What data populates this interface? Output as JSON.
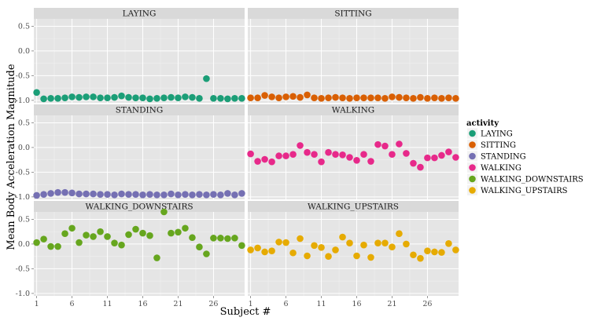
{
  "chart_data": {
    "type": "scatter",
    "xlabel": "Subject #",
    "ylabel": "Mean Body Acceleration Magnitude",
    "xlim": [
      0.6,
      30.4
    ],
    "ylim": [
      -1.05,
      0.65
    ],
    "x_ticks": [
      1,
      6,
      11,
      16,
      21,
      26
    ],
    "y_ticks": [
      -1.0,
      -0.5,
      0.0,
      0.5
    ],
    "y_tick_labels": [
      "-1.0",
      "-0.5",
      "0.0",
      "0.5"
    ],
    "grid": true,
    "legend_title": "activity",
    "legend_position": "right",
    "x": [
      1,
      2,
      3,
      4,
      5,
      6,
      7,
      8,
      9,
      10,
      11,
      12,
      13,
      14,
      15,
      16,
      17,
      18,
      19,
      20,
      21,
      22,
      23,
      24,
      25,
      26,
      27,
      28,
      29,
      30
    ],
    "facets": [
      {
        "name": "LAYING",
        "color": "#1b9e77",
        "values": [
          -0.84,
          -0.97,
          -0.96,
          -0.96,
          -0.95,
          -0.93,
          -0.94,
          -0.93,
          -0.93,
          -0.95,
          -0.95,
          -0.94,
          -0.91,
          -0.94,
          -0.95,
          -0.95,
          -0.97,
          -0.96,
          -0.95,
          -0.94,
          -0.95,
          -0.93,
          -0.94,
          -0.96,
          -0.56,
          -0.96,
          -0.96,
          -0.97,
          -0.96,
          -0.96
        ]
      },
      {
        "name": "SITTING",
        "color": "#d95f02",
        "values": [
          -0.95,
          -0.95,
          -0.9,
          -0.93,
          -0.95,
          -0.93,
          -0.92,
          -0.94,
          -0.89,
          -0.95,
          -0.96,
          -0.95,
          -0.94,
          -0.95,
          -0.96,
          -0.95,
          -0.95,
          -0.95,
          -0.95,
          -0.96,
          -0.93,
          -0.94,
          -0.95,
          -0.96,
          -0.94,
          -0.96,
          -0.95,
          -0.96,
          -0.95,
          -0.96
        ]
      },
      {
        "name": "STANDING",
        "color": "#7570b3",
        "values": [
          -0.97,
          -0.95,
          -0.93,
          -0.91,
          -0.91,
          -0.92,
          -0.94,
          -0.94,
          -0.94,
          -0.95,
          -0.95,
          -0.96,
          -0.94,
          -0.95,
          -0.95,
          -0.96,
          -0.95,
          -0.96,
          -0.96,
          -0.94,
          -0.96,
          -0.95,
          -0.96,
          -0.95,
          -0.96,
          -0.95,
          -0.96,
          -0.93,
          -0.96,
          -0.93
        ]
      },
      {
        "name": "WALKING",
        "color": "#e7298a",
        "values": [
          -0.13,
          -0.28,
          -0.24,
          -0.29,
          -0.17,
          -0.17,
          -0.14,
          0.04,
          -0.1,
          -0.14,
          -0.29,
          -0.1,
          -0.14,
          -0.15,
          -0.2,
          -0.26,
          -0.14,
          -0.28,
          0.06,
          0.03,
          -0.14,
          0.07,
          -0.12,
          -0.32,
          -0.4,
          -0.21,
          -0.21,
          -0.16,
          -0.09,
          -0.2
        ]
      },
      {
        "name": "WALKING_DOWNSTAIRS",
        "color": "#66a61e",
        "values": [
          0.03,
          0.1,
          -0.05,
          -0.05,
          0.21,
          0.32,
          0.03,
          0.18,
          0.15,
          0.25,
          0.15,
          0.02,
          -0.02,
          0.19,
          0.3,
          0.22,
          0.17,
          -0.28,
          0.65,
          0.22,
          0.24,
          0.32,
          0.13,
          -0.06,
          -0.2,
          0.12,
          0.12,
          0.11,
          0.12,
          -0.03
        ]
      },
      {
        "name": "WALKING_UPSTAIRS",
        "color": "#e6ab02",
        "values": [
          -0.12,
          -0.08,
          -0.16,
          -0.14,
          0.04,
          0.03,
          -0.18,
          0.11,
          -0.24,
          -0.03,
          -0.07,
          -0.25,
          -0.12,
          0.14,
          0.02,
          -0.24,
          -0.02,
          -0.27,
          0.02,
          0.02,
          -0.06,
          0.21,
          0.0,
          -0.22,
          -0.29,
          -0.14,
          -0.16,
          -0.17,
          0.01,
          -0.12
        ]
      }
    ]
  }
}
